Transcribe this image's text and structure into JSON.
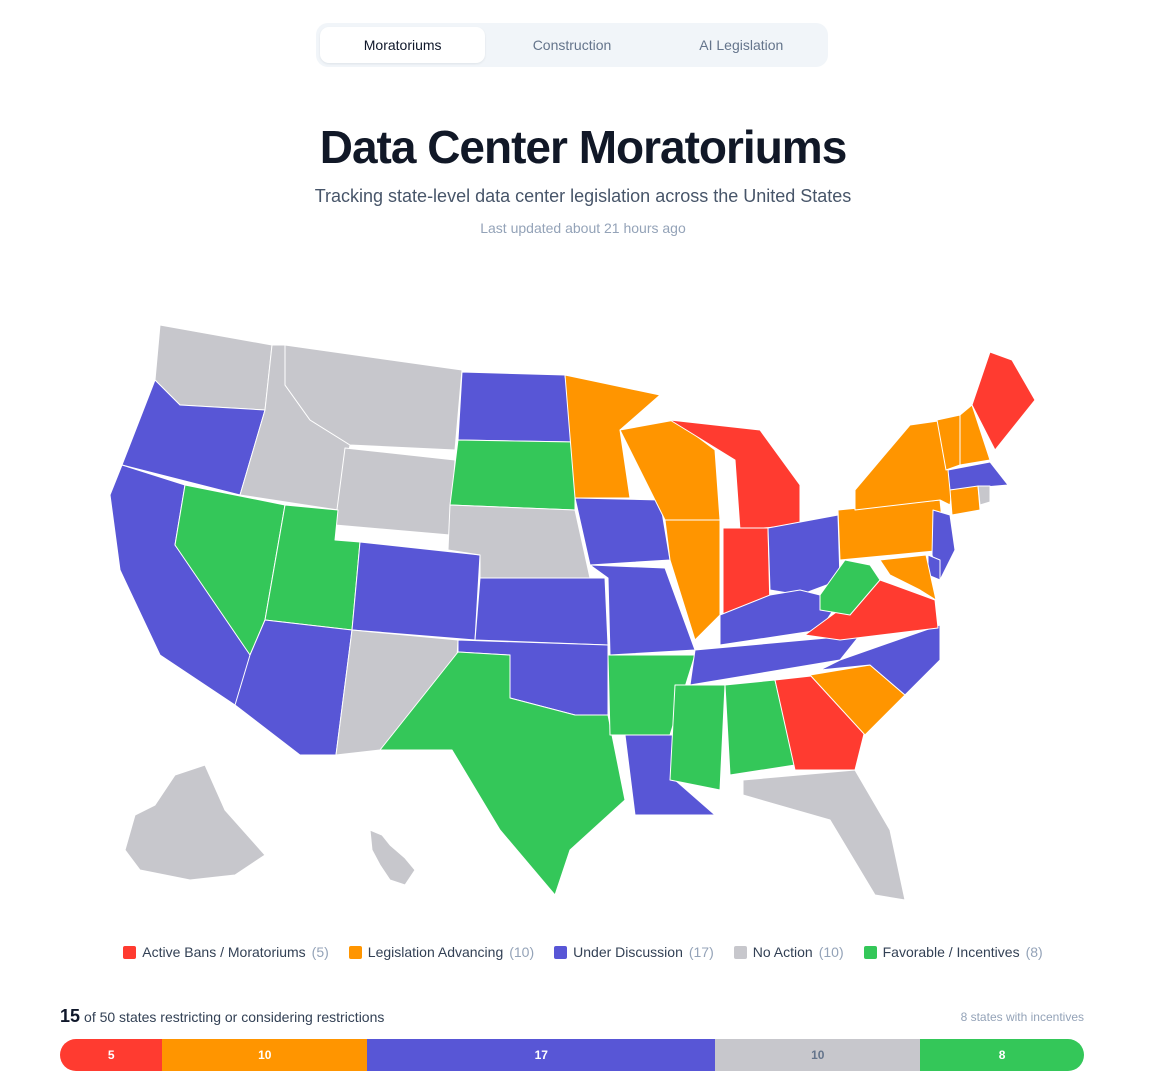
{
  "tabs": [
    {
      "label": "Moratoriums",
      "active": true
    },
    {
      "label": "Construction",
      "active": false
    },
    {
      "label": "AI Legislation",
      "active": false
    }
  ],
  "header": {
    "title": "Data Center Moratoriums",
    "subtitle": "Tracking state-level data center legislation across the United States",
    "updated": "Last updated about 21 hours ago"
  },
  "colors": {
    "ban": "#ff3b30",
    "advancing": "#ff9500",
    "discussion": "#5856d6",
    "none": "#c7c7cc",
    "favorable": "#34c759"
  },
  "map": {
    "states": {
      "WA": "none",
      "OR": "discussion",
      "CA": "discussion",
      "NV": "favorable",
      "ID": "none",
      "MT": "none",
      "WY": "none",
      "UT": "favorable",
      "AZ": "discussion",
      "CO": "discussion",
      "NM": "none",
      "ND": "discussion",
      "SD": "favorable",
      "NE": "none",
      "KS": "discussion",
      "OK": "discussion",
      "TX": "favorable",
      "MN": "advancing",
      "IA": "discussion",
      "MO": "discussion",
      "AR": "favorable",
      "LA": "discussion",
      "WI": "advancing",
      "IL": "advancing",
      "MI": "ban",
      "IN": "ban",
      "OH": "discussion",
      "KY": "discussion",
      "TN": "discussion",
      "MS": "favorable",
      "AL": "favorable",
      "GA": "ban",
      "FL": "none",
      "SC": "advancing",
      "NC": "discussion",
      "VA": "ban",
      "WV": "favorable",
      "PA": "advancing",
      "NY": "advancing",
      "VT": "advancing",
      "NH": "advancing",
      "ME": "ban",
      "MA": "discussion",
      "CT": "advancing",
      "RI": "none",
      "NJ": "discussion",
      "DE": "discussion",
      "MD": "advancing",
      "AK": "none",
      "HI": "none"
    }
  },
  "legend": [
    {
      "key": "ban",
      "label": "Active Bans / Moratoriums",
      "count": "(5)",
      "color": "#ff3b30"
    },
    {
      "key": "advancing",
      "label": "Legislation Advancing",
      "count": "(10)",
      "color": "#ff9500"
    },
    {
      "key": "discussion",
      "label": "Under Discussion",
      "count": "(17)",
      "color": "#5856d6"
    },
    {
      "key": "none",
      "label": "No Action",
      "count": "(10)",
      "color": "#c7c7cc"
    },
    {
      "key": "favorable",
      "label": "Favorable / Incentives",
      "count": "(8)",
      "color": "#34c759"
    }
  ],
  "summary": {
    "count": "15",
    "text": "of 50 states restricting or considering restrictions",
    "incentives": "8 states with incentives"
  },
  "bar": [
    {
      "key": "ban",
      "value": 5,
      "label": "5",
      "color": "#ff3b30"
    },
    {
      "key": "advancing",
      "value": 10,
      "label": "10",
      "color": "#ff9500"
    },
    {
      "key": "discussion",
      "value": 17,
      "label": "17",
      "color": "#5856d6"
    },
    {
      "key": "none",
      "value": 10,
      "label": "10",
      "color": "#c7c7cc"
    },
    {
      "key": "favorable",
      "value": 8,
      "label": "8",
      "color": "#34c759"
    }
  ]
}
